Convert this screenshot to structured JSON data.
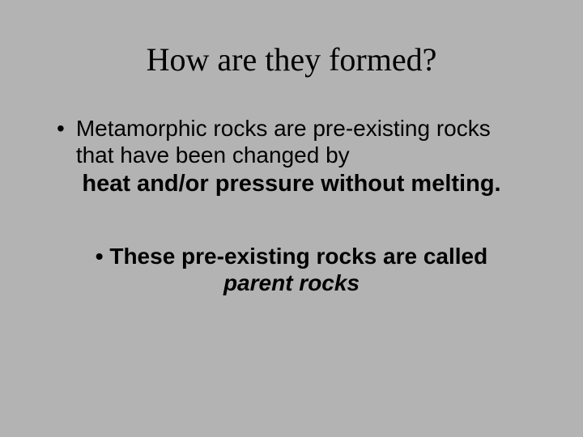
{
  "slide": {
    "background_color": "#b3b3b3",
    "text_color": "#000000",
    "title": {
      "text": "How are they formed?",
      "font_family": "Times New Roman",
      "font_size_pt": 40,
      "font_weight": 400,
      "align": "center"
    },
    "bullets": [
      {
        "lead_text": "Metamorphic rocks are pre-existing rocks that have been changed by",
        "lead_font_size_pt": 28,
        "lead_font_weight": 400,
        "emphasis_text": "heat and/or pressure without melting.",
        "emphasis_font_size_pt": 29,
        "emphasis_font_weight": 700,
        "emphasis_align": "center"
      },
      {
        "bold_prefix": "These pre-existing rocks are called",
        "italic_bold_suffix": "parent rocks",
        "font_size_pt": 28,
        "font_weight": 700,
        "align": "center"
      }
    ],
    "bullet_glyph": "•"
  }
}
